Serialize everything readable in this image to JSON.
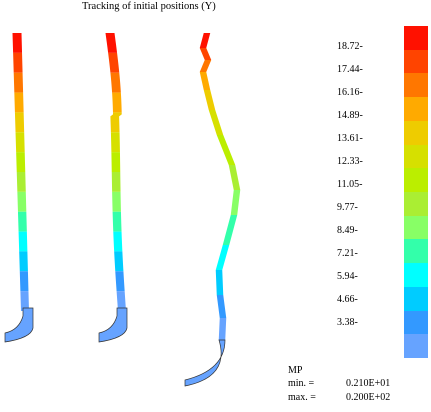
{
  "title": "Tracking of initial positions (Y)",
  "scale": {
    "labels": [
      "18.72-",
      "17.44-",
      "16.16-",
      "14.89-",
      "13.61-",
      "12.33-",
      "11.05-",
      "9.77-",
      "8.49-",
      "7.21-",
      "5.94-",
      "4.66-",
      "3.38-"
    ],
    "colors": [
      "#ff1100",
      "#ff4400",
      "#ff7700",
      "#ffaa00",
      "#eecc00",
      "#d6e000",
      "#bbee00",
      "#aaee33",
      "#88ff66",
      "#33ffaa",
      "#00ffff",
      "#00ccff",
      "#3399ff",
      "#66a3ff"
    ]
  },
  "legend": {
    "variable": "MP",
    "min_label": "min. =",
    "min_value": "0.210E+01",
    "max_label": "max. =",
    "max_value": "0.200E+02"
  }
}
